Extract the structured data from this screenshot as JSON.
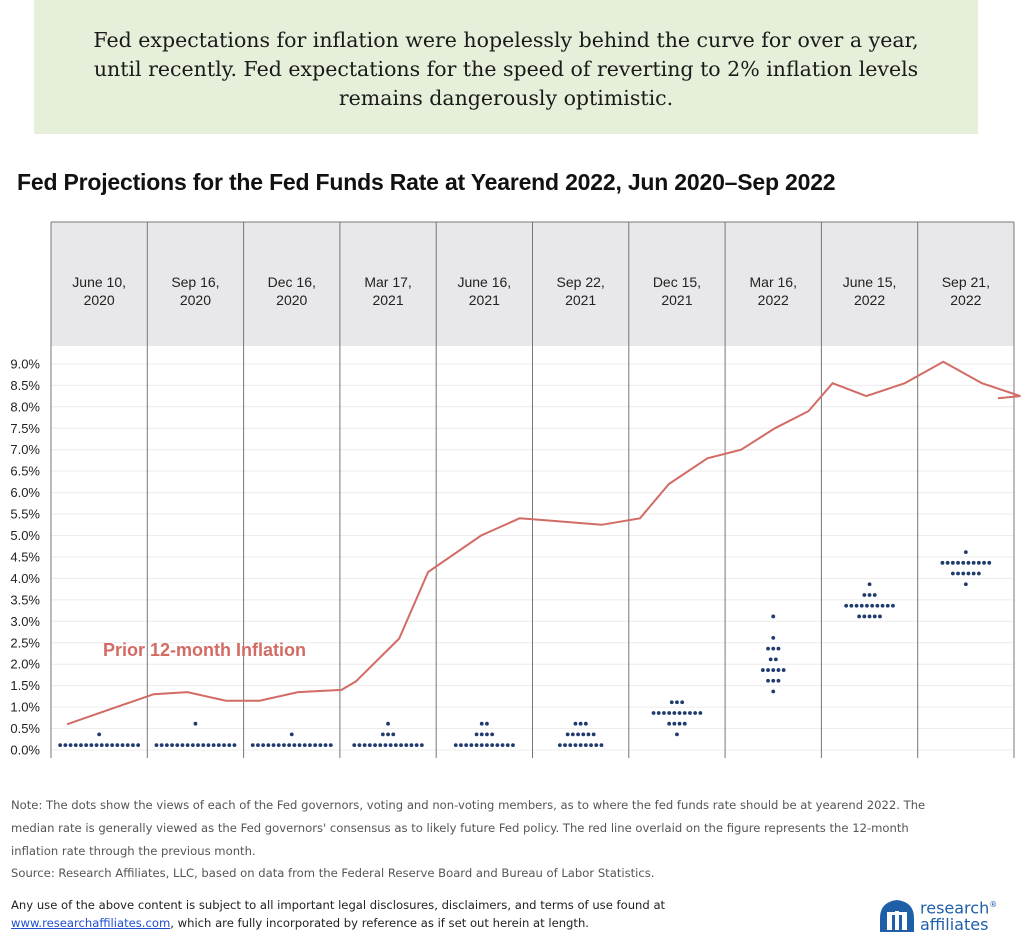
{
  "banner": {
    "text": "Fed expectations for inflation were hopelessly behind the curve for over a year, until recently. Fed expectations for the speed of reverting to 2% inflation levels remains dangerously optimistic."
  },
  "chart_data": {
    "type": "scatter",
    "title": "Fed Projections for the Fed Funds Rate at Yearend  2022, Jun 2020–Sep 2022",
    "xlabel": "",
    "ylabel": "",
    "ylim": [
      0,
      9.0
    ],
    "y_ticks": [
      "0.0%",
      "0.5%",
      "1.0%",
      "1.5%",
      "2.0%",
      "2.5%",
      "3.0%",
      "3.5%",
      "4.0%",
      "4.5%",
      "5.0%",
      "5.5%",
      "6.0%",
      "6.5%",
      "7.0%",
      "7.5%",
      "8.0%",
      "8.5%",
      "9.0%"
    ],
    "y_tick_values": [
      0,
      0.5,
      1.0,
      1.5,
      2.0,
      2.5,
      3.0,
      3.5,
      4.0,
      4.5,
      5.0,
      5.5,
      6.0,
      6.5,
      7.0,
      7.5,
      8.0,
      8.5,
      9.0
    ],
    "meetings": [
      {
        "label": "June 10,\n2020",
        "dots": [
          {
            "rate": 0.125,
            "count": 16
          },
          {
            "rate": 0.375,
            "count": 1
          }
        ]
      },
      {
        "label": "Sep 16,\n2020",
        "dots": [
          {
            "rate": 0.125,
            "count": 16
          },
          {
            "rate": 0.625,
            "count": 1
          }
        ]
      },
      {
        "label": "Dec 16,\n2020",
        "dots": [
          {
            "rate": 0.125,
            "count": 16
          },
          {
            "rate": 0.375,
            "count": 1
          }
        ]
      },
      {
        "label": "Mar 17,\n2021",
        "dots": [
          {
            "rate": 0.125,
            "count": 14
          },
          {
            "rate": 0.375,
            "count": 3
          },
          {
            "rate": 0.625,
            "count": 1
          }
        ]
      },
      {
        "label": "June 16,\n2021",
        "dots": [
          {
            "rate": 0.125,
            "count": 12
          },
          {
            "rate": 0.375,
            "count": 4
          },
          {
            "rate": 0.625,
            "count": 2
          }
        ]
      },
      {
        "label": "Sep 22,\n2021",
        "dots": [
          {
            "rate": 0.125,
            "count": 9
          },
          {
            "rate": 0.375,
            "count": 6
          },
          {
            "rate": 0.625,
            "count": 3
          }
        ]
      },
      {
        "label": "Dec 15,\n2021",
        "dots": [
          {
            "rate": 0.375,
            "count": 1
          },
          {
            "rate": 0.625,
            "count": 4
          },
          {
            "rate": 0.875,
            "count": 10
          },
          {
            "rate": 1.125,
            "count": 3
          }
        ]
      },
      {
        "label": "Mar 16,\n2022",
        "dots": [
          {
            "rate": 1.375,
            "count": 1
          },
          {
            "rate": 1.625,
            "count": 3
          },
          {
            "rate": 1.875,
            "count": 5
          },
          {
            "rate": 2.125,
            "count": 2
          },
          {
            "rate": 2.375,
            "count": 3
          },
          {
            "rate": 2.625,
            "count": 1
          },
          {
            "rate": 3.125,
            "count": 1
          }
        ]
      },
      {
        "label": "June 15,\n2022",
        "dots": [
          {
            "rate": 3.125,
            "count": 5
          },
          {
            "rate": 3.375,
            "count": 10
          },
          {
            "rate": 3.625,
            "count": 3
          },
          {
            "rate": 3.875,
            "count": 1
          }
        ]
      },
      {
        "label": "Sep 21,\n2022",
        "dots": [
          {
            "rate": 3.875,
            "count": 1
          },
          {
            "rate": 4.125,
            "count": 6
          },
          {
            "rate": 4.375,
            "count": 10
          },
          {
            "rate": 4.625,
            "count": 1
          }
        ]
      }
    ],
    "series": [
      {
        "name": "Prior 12-month Inflation",
        "color": "#d26b64",
        "x": [
          0,
          0.45,
          0.9,
          1.25,
          1.65,
          2.0,
          2.4,
          2.85,
          3.0,
          3.45,
          3.75,
          4.3,
          4.7,
          5.0,
          5.55,
          5.95,
          6.25,
          6.65,
          7.0,
          7.35,
          7.7,
          7.95,
          8.3,
          8.7,
          9.1,
          9.5,
          9.9
        ],
        "values": [
          0.6,
          0.95,
          1.3,
          1.35,
          1.15,
          1.15,
          1.35,
          1.4,
          1.6,
          2.6,
          4.15,
          5.0,
          5.4,
          5.35,
          5.25,
          5.4,
          6.2,
          6.8,
          7.0,
          7.5,
          7.9,
          8.55,
          8.25,
          8.55,
          9.05,
          8.55,
          8.25
        ]
      }
    ],
    "series_end": {
      "x": 10.3,
      "value": 8.2
    },
    "annotation": "Prior 12-month Inflation",
    "dot_color": "#1f3a6e",
    "header_bg": "#e8e8ea"
  },
  "note": {
    "line1": "Note: The dots show the views of each of the Fed governors, voting and non-voting members, as to where the fed funds rate should be at yearend 2022. The",
    "line2": "median rate is generally viewed as the Fed governors' consensus as to likely future Fed policy. The red line overlaid on the figure represents the 12-month",
    "line3": "inflation rate through the previous month.",
    "source": "Source: Research Affiliates, LLC, based on data from the Federal Reserve Board and Bureau of Labor Statistics."
  },
  "disclaimer": {
    "line1": "Any use of the above content is subject to all important legal disclosures, disclaimers, and terms of use found at",
    "link": "www.researchaffiliates.com",
    "line2_rest": ", which are fully incorporated by reference as if set out herein at length."
  },
  "logo": {
    "line1": "research",
    "line2": "affiliates",
    "reg": "®",
    "color": "#1f5fa8"
  }
}
